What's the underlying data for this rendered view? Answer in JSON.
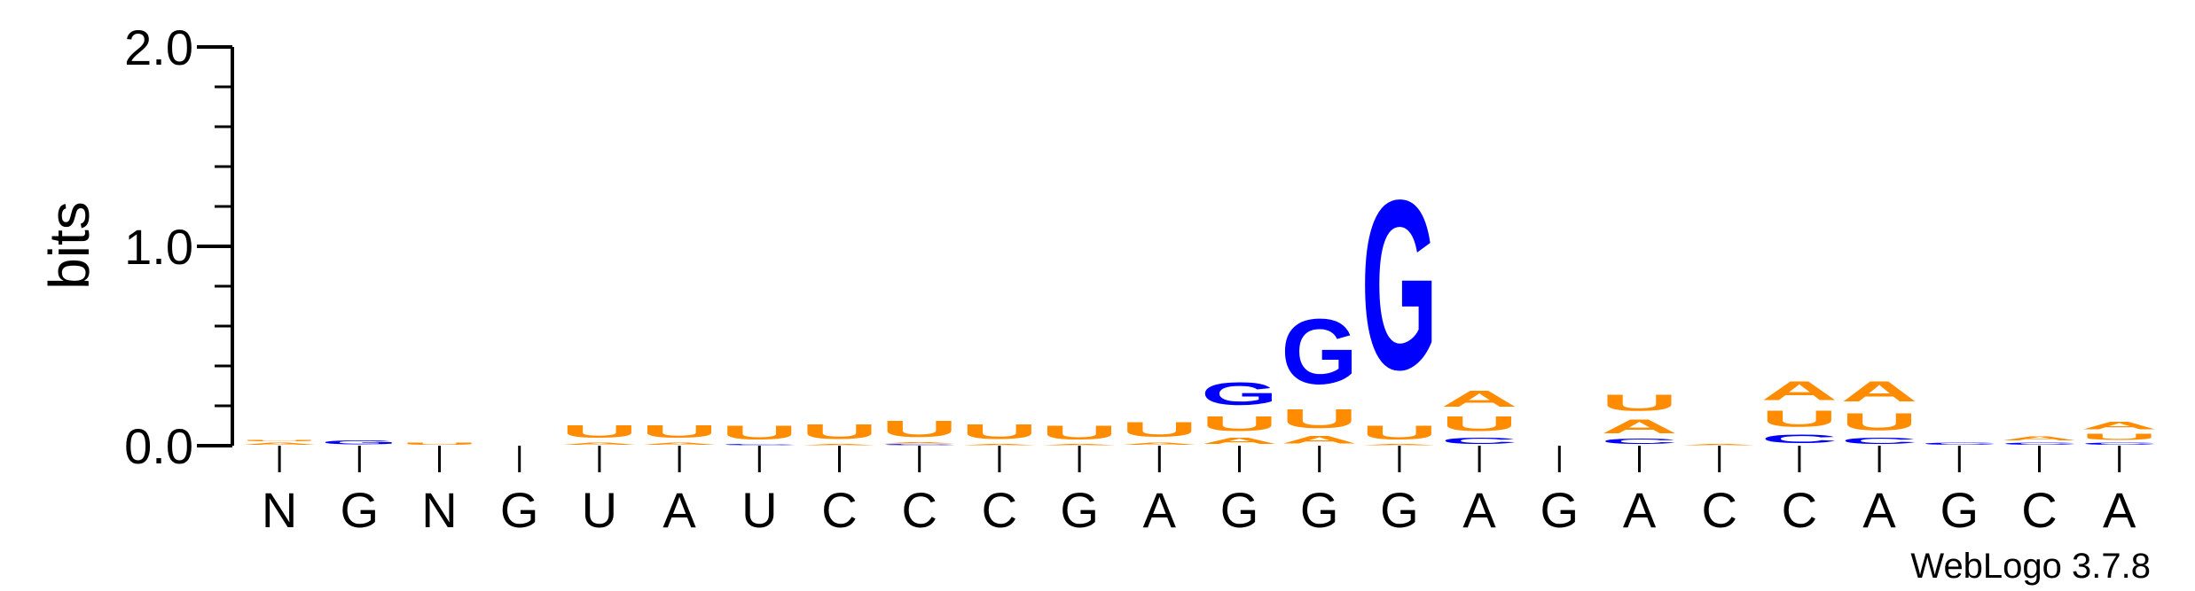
{
  "chart_data": {
    "type": "sequence-logo",
    "ylabel": "bits",
    "ylim": [
      0,
      2
    ],
    "yticks": [
      "0.0",
      "1.0",
      "2.0"
    ],
    "credit": "WebLogo 3.7.8",
    "colors": {
      "G": "#0000ff",
      "C": "#0000ff",
      "A": "#ff8c00",
      "U": "#ff8c00"
    },
    "positions": [
      {
        "label": "N",
        "stack": [
          {
            "letter": "A",
            "bits": 0.02
          },
          {
            "letter": "U",
            "bits": 0.01
          }
        ]
      },
      {
        "label": "G",
        "stack": [
          {
            "letter": "G",
            "bits": 0.03
          }
        ]
      },
      {
        "label": "N",
        "stack": [
          {
            "letter": "U",
            "bits": 0.02
          }
        ]
      },
      {
        "label": "G",
        "stack": []
      },
      {
        "label": "U",
        "stack": [
          {
            "letter": "A",
            "bits": 0.02
          },
          {
            "letter": "U",
            "bits": 0.1
          }
        ]
      },
      {
        "label": "A",
        "stack": [
          {
            "letter": "A",
            "bits": 0.02
          },
          {
            "letter": "U",
            "bits": 0.1
          }
        ]
      },
      {
        "label": "U",
        "stack": [
          {
            "letter": "C",
            "bits": 0.01
          },
          {
            "letter": "U",
            "bits": 0.11
          }
        ]
      },
      {
        "label": "C",
        "stack": [
          {
            "letter": "A",
            "bits": 0.01
          },
          {
            "letter": "U",
            "bits": 0.12
          }
        ]
      },
      {
        "label": "C",
        "stack": [
          {
            "letter": "C",
            "bits": 0.01
          },
          {
            "letter": "A",
            "bits": 0.01
          },
          {
            "letter": "U",
            "bits": 0.13
          }
        ]
      },
      {
        "label": "C",
        "stack": [
          {
            "letter": "A",
            "bits": 0.01
          },
          {
            "letter": "U",
            "bits": 0.12
          }
        ]
      },
      {
        "label": "G",
        "stack": [
          {
            "letter": "A",
            "bits": 0.01
          },
          {
            "letter": "U",
            "bits": 0.11
          }
        ]
      },
      {
        "label": "A",
        "stack": [
          {
            "letter": "A",
            "bits": 0.02
          },
          {
            "letter": "U",
            "bits": 0.12
          }
        ]
      },
      {
        "label": "G",
        "stack": [
          {
            "letter": "A",
            "bits": 0.05
          },
          {
            "letter": "U",
            "bits": 0.12
          },
          {
            "letter": "G",
            "bits": 0.18
          }
        ]
      },
      {
        "label": "G",
        "stack": [
          {
            "letter": "A",
            "bits": 0.06
          },
          {
            "letter": "U",
            "bits": 0.15
          },
          {
            "letter": "G",
            "bits": 0.52
          }
        ]
      },
      {
        "label": "G",
        "stack": [
          {
            "letter": "A",
            "bits": 0.01
          },
          {
            "letter": "U",
            "bits": 0.11
          },
          {
            "letter": "G",
            "bits": 1.36
          }
        ]
      },
      {
        "label": "A",
        "stack": [
          {
            "letter": "C",
            "bits": 0.05
          },
          {
            "letter": "U",
            "bits": 0.12
          },
          {
            "letter": "A",
            "bits": 0.13
          }
        ]
      },
      {
        "label": "G",
        "stack": []
      },
      {
        "label": "A",
        "stack": [
          {
            "letter": "C",
            "bits": 0.04
          },
          {
            "letter": "A",
            "bits": 0.11
          },
          {
            "letter": "U",
            "bits": 0.13
          }
        ]
      },
      {
        "label": "C",
        "stack": [
          {
            "letter": "A",
            "bits": 0.01
          }
        ]
      },
      {
        "label": "C",
        "stack": [
          {
            "letter": "C",
            "bits": 0.07
          },
          {
            "letter": "U",
            "bits": 0.13
          },
          {
            "letter": "A",
            "bits": 0.15
          }
        ]
      },
      {
        "label": "A",
        "stack": [
          {
            "letter": "C",
            "bits": 0.05
          },
          {
            "letter": "U",
            "bits": 0.14
          },
          {
            "letter": "A",
            "bits": 0.16
          }
        ]
      },
      {
        "label": "G",
        "stack": [
          {
            "letter": "C",
            "bits": 0.02
          }
        ]
      },
      {
        "label": "C",
        "stack": [
          {
            "letter": "C",
            "bits": 0.02
          },
          {
            "letter": "A",
            "bits": 0.03
          }
        ]
      },
      {
        "label": "A",
        "stack": [
          {
            "letter": "C",
            "bits": 0.02
          },
          {
            "letter": "U",
            "bits": 0.05
          },
          {
            "letter": "A",
            "bits": 0.06
          }
        ]
      }
    ]
  }
}
